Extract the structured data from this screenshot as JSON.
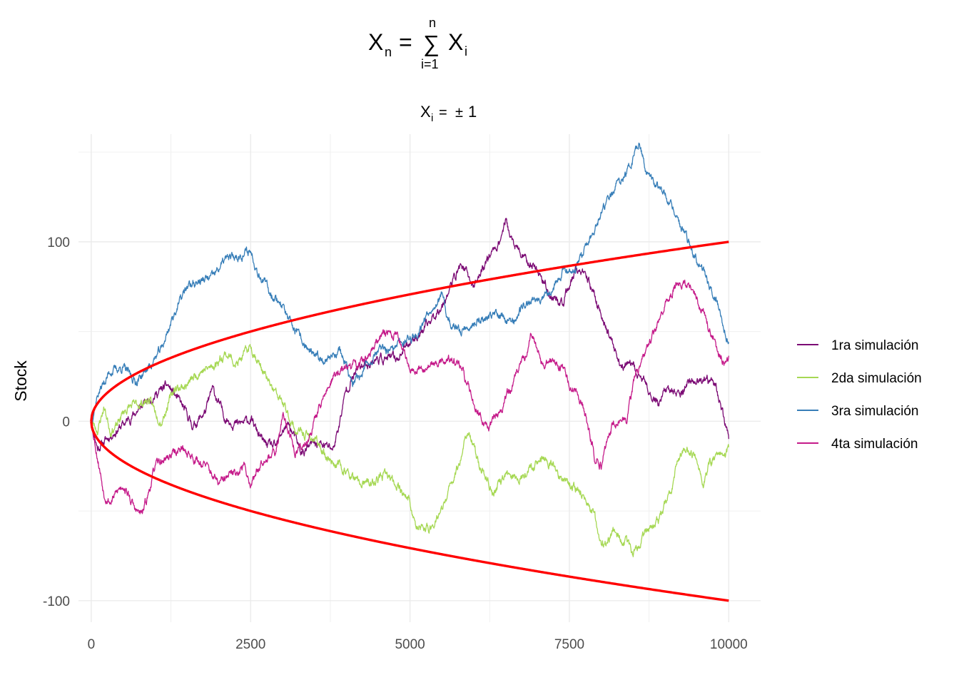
{
  "chart_data": {
    "type": "line",
    "title": {
      "base": "X",
      "sub": "n",
      "eq": "=",
      "sum_symbol": "∑",
      "sum_upper": "n",
      "sum_lower": "i=1",
      "term": "X",
      "term_sub": "i"
    },
    "subtitle": {
      "base": "X",
      "sub": "i",
      "eq": "=",
      "pm": "±",
      "value": "1"
    },
    "xlabel": "",
    "ylabel": "Stock",
    "xlim": [
      -200,
      10500
    ],
    "ylim": [
      -112,
      160
    ],
    "x_ticks": [
      0,
      2500,
      5000,
      7500,
      10000
    ],
    "y_ticks": [
      -100,
      0,
      100
    ],
    "grid": true,
    "legend_position": "right",
    "envelope": {
      "color": "#ff0000",
      "formula": "±sqrt(n)",
      "n_max": 10000
    },
    "series": [
      {
        "name": "1ra simulación",
        "color": "#7b0a74",
        "seed": 11,
        "anchors": [
          [
            0,
            0
          ],
          [
            100,
            -15
          ],
          [
            300,
            -8
          ],
          [
            500,
            -2
          ],
          [
            700,
            5
          ],
          [
            900,
            12
          ],
          [
            1200,
            20
          ],
          [
            1400,
            10
          ],
          [
            1600,
            -3
          ],
          [
            1800,
            6
          ],
          [
            1900,
            18
          ],
          [
            2100,
            2
          ],
          [
            2300,
            -2
          ],
          [
            2500,
            1
          ],
          [
            2700,
            -12
          ],
          [
            2900,
            -15
          ],
          [
            3000,
            -5
          ],
          [
            3100,
            -2
          ],
          [
            3300,
            -18
          ],
          [
            3500,
            -12
          ],
          [
            3800,
            -15
          ],
          [
            3900,
            0
          ],
          [
            4000,
            18
          ],
          [
            4200,
            30
          ],
          [
            4500,
            35
          ],
          [
            4800,
            35
          ],
          [
            5000,
            45
          ],
          [
            5200,
            50
          ],
          [
            5500,
            65
          ],
          [
            5700,
            80
          ],
          [
            5800,
            88
          ],
          [
            6000,
            75
          ],
          [
            6200,
            90
          ],
          [
            6400,
            100
          ],
          [
            6500,
            112
          ],
          [
            6600,
            100
          ],
          [
            6800,
            90
          ],
          [
            7000,
            85
          ],
          [
            7200,
            70
          ],
          [
            7400,
            65
          ],
          [
            7600,
            85
          ],
          [
            7800,
            78
          ],
          [
            8000,
            60
          ],
          [
            8200,
            40
          ],
          [
            8300,
            32
          ],
          [
            8500,
            30
          ],
          [
            8700,
            20
          ],
          [
            8900,
            10
          ],
          [
            9000,
            18
          ],
          [
            9200,
            15
          ],
          [
            9400,
            22
          ],
          [
            9600,
            22
          ],
          [
            9800,
            20
          ],
          [
            9900,
            5
          ],
          [
            10000,
            -10
          ]
        ]
      },
      {
        "name": "2da simulación",
        "color": "#a6d854",
        "seed": 23,
        "anchors": [
          [
            0,
            0
          ],
          [
            100,
            -5
          ],
          [
            200,
            8
          ],
          [
            300,
            -5
          ],
          [
            400,
            -3
          ],
          [
            500,
            5
          ],
          [
            600,
            8
          ],
          [
            800,
            10
          ],
          [
            900,
            12
          ],
          [
            1100,
            0
          ],
          [
            1300,
            18
          ],
          [
            1500,
            20
          ],
          [
            1700,
            28
          ],
          [
            1900,
            30
          ],
          [
            2100,
            38
          ],
          [
            2300,
            32
          ],
          [
            2500,
            42
          ],
          [
            2600,
            35
          ],
          [
            2800,
            20
          ],
          [
            3000,
            10
          ],
          [
            3200,
            -5
          ],
          [
            3500,
            -10
          ],
          [
            3700,
            -20
          ],
          [
            3900,
            -25
          ],
          [
            4200,
            -35
          ],
          [
            4400,
            -35
          ],
          [
            4600,
            -30
          ],
          [
            4800,
            -35
          ],
          [
            5000,
            -45
          ],
          [
            5100,
            -60
          ],
          [
            5300,
            -60
          ],
          [
            5500,
            -50
          ],
          [
            5700,
            -30
          ],
          [
            5800,
            -20
          ],
          [
            5900,
            -5
          ],
          [
            6100,
            -25
          ],
          [
            6300,
            -40
          ],
          [
            6400,
            -35
          ],
          [
            6500,
            -30
          ],
          [
            6700,
            -32
          ],
          [
            6900,
            -25
          ],
          [
            7100,
            -20
          ],
          [
            7300,
            -28
          ],
          [
            7500,
            -35
          ],
          [
            7700,
            -40
          ],
          [
            7900,
            -55
          ],
          [
            8000,
            -70
          ],
          [
            8200,
            -62
          ],
          [
            8400,
            -68
          ],
          [
            8500,
            -75
          ],
          [
            8700,
            -60
          ],
          [
            8900,
            -55
          ],
          [
            9100,
            -40
          ],
          [
            9200,
            -20
          ],
          [
            9300,
            -15
          ],
          [
            9500,
            -20
          ],
          [
            9600,
            -35
          ],
          [
            9700,
            -25
          ],
          [
            9800,
            -18
          ],
          [
            9900,
            -20
          ],
          [
            10000,
            -15
          ]
        ]
      },
      {
        "name": "3ra simulación",
        "color": "#377eb8",
        "seed": 37,
        "anchors": [
          [
            0,
            0
          ],
          [
            100,
            15
          ],
          [
            300,
            28
          ],
          [
            500,
            30
          ],
          [
            700,
            22
          ],
          [
            900,
            30
          ],
          [
            1100,
            40
          ],
          [
            1300,
            60
          ],
          [
            1500,
            75
          ],
          [
            1700,
            78
          ],
          [
            1900,
            80
          ],
          [
            2100,
            90
          ],
          [
            2300,
            92
          ],
          [
            2500,
            95
          ],
          [
            2600,
            85
          ],
          [
            2800,
            72
          ],
          [
            3000,
            65
          ],
          [
            3100,
            55
          ],
          [
            3300,
            45
          ],
          [
            3500,
            35
          ],
          [
            3700,
            35
          ],
          [
            3900,
            40
          ],
          [
            4100,
            20
          ],
          [
            4300,
            30
          ],
          [
            4500,
            40
          ],
          [
            4700,
            38
          ],
          [
            4900,
            45
          ],
          [
            5100,
            48
          ],
          [
            5300,
            62
          ],
          [
            5500,
            70
          ],
          [
            5600,
            55
          ],
          [
            5800,
            50
          ],
          [
            6000,
            55
          ],
          [
            6200,
            58
          ],
          [
            6400,
            60
          ],
          [
            6600,
            55
          ],
          [
            6800,
            65
          ],
          [
            7000,
            70
          ],
          [
            7200,
            72
          ],
          [
            7400,
            85
          ],
          [
            7600,
            85
          ],
          [
            7800,
            100
          ],
          [
            8000,
            115
          ],
          [
            8200,
            130
          ],
          [
            8400,
            138
          ],
          [
            8600,
            155
          ],
          [
            8700,
            140
          ],
          [
            8900,
            130
          ],
          [
            9100,
            120
          ],
          [
            9300,
            105
          ],
          [
            9500,
            90
          ],
          [
            9700,
            75
          ],
          [
            9800,
            70
          ],
          [
            9900,
            55
          ],
          [
            10000,
            45
          ]
        ]
      },
      {
        "name": "4ta simulación",
        "color": "#c51b8a",
        "seed": 53,
        "anchors": [
          [
            0,
            0
          ],
          [
            100,
            -20
          ],
          [
            200,
            -40
          ],
          [
            300,
            -45
          ],
          [
            500,
            -35
          ],
          [
            700,
            -50
          ],
          [
            800,
            -52
          ],
          [
            900,
            -40
          ],
          [
            1000,
            -25
          ],
          [
            1200,
            -20
          ],
          [
            1400,
            -15
          ],
          [
            1600,
            -20
          ],
          [
            1800,
            -25
          ],
          [
            2000,
            -35
          ],
          [
            2200,
            -30
          ],
          [
            2400,
            -25
          ],
          [
            2500,
            -35
          ],
          [
            2700,
            -20
          ],
          [
            2900,
            -18
          ],
          [
            3000,
            5
          ],
          [
            3100,
            -5
          ],
          [
            3200,
            -18
          ],
          [
            3400,
            -10
          ],
          [
            3600,
            10
          ],
          [
            3800,
            25
          ],
          [
            4000,
            30
          ],
          [
            4200,
            32
          ],
          [
            4400,
            38
          ],
          [
            4600,
            50
          ],
          [
            4800,
            48
          ],
          [
            5000,
            30
          ],
          [
            5200,
            30
          ],
          [
            5400,
            32
          ],
          [
            5600,
            35
          ],
          [
            5800,
            30
          ],
          [
            6000,
            10
          ],
          [
            6100,
            5
          ],
          [
            6200,
            -5
          ],
          [
            6400,
            5
          ],
          [
            6600,
            20
          ],
          [
            6800,
            35
          ],
          [
            6900,
            50
          ],
          [
            7000,
            38
          ],
          [
            7100,
            30
          ],
          [
            7200,
            35
          ],
          [
            7400,
            28
          ],
          [
            7600,
            15
          ],
          [
            7700,
            10
          ],
          [
            7800,
            -5
          ],
          [
            7900,
            -20
          ],
          [
            8000,
            -25
          ],
          [
            8100,
            -10
          ],
          [
            8200,
            0
          ],
          [
            8400,
            0
          ],
          [
            8500,
            20
          ],
          [
            8700,
            40
          ],
          [
            8900,
            55
          ],
          [
            9000,
            65
          ],
          [
            9200,
            78
          ],
          [
            9400,
            75
          ],
          [
            9600,
            60
          ],
          [
            9800,
            40
          ],
          [
            9900,
            35
          ],
          [
            10000,
            35
          ]
        ]
      }
    ]
  }
}
